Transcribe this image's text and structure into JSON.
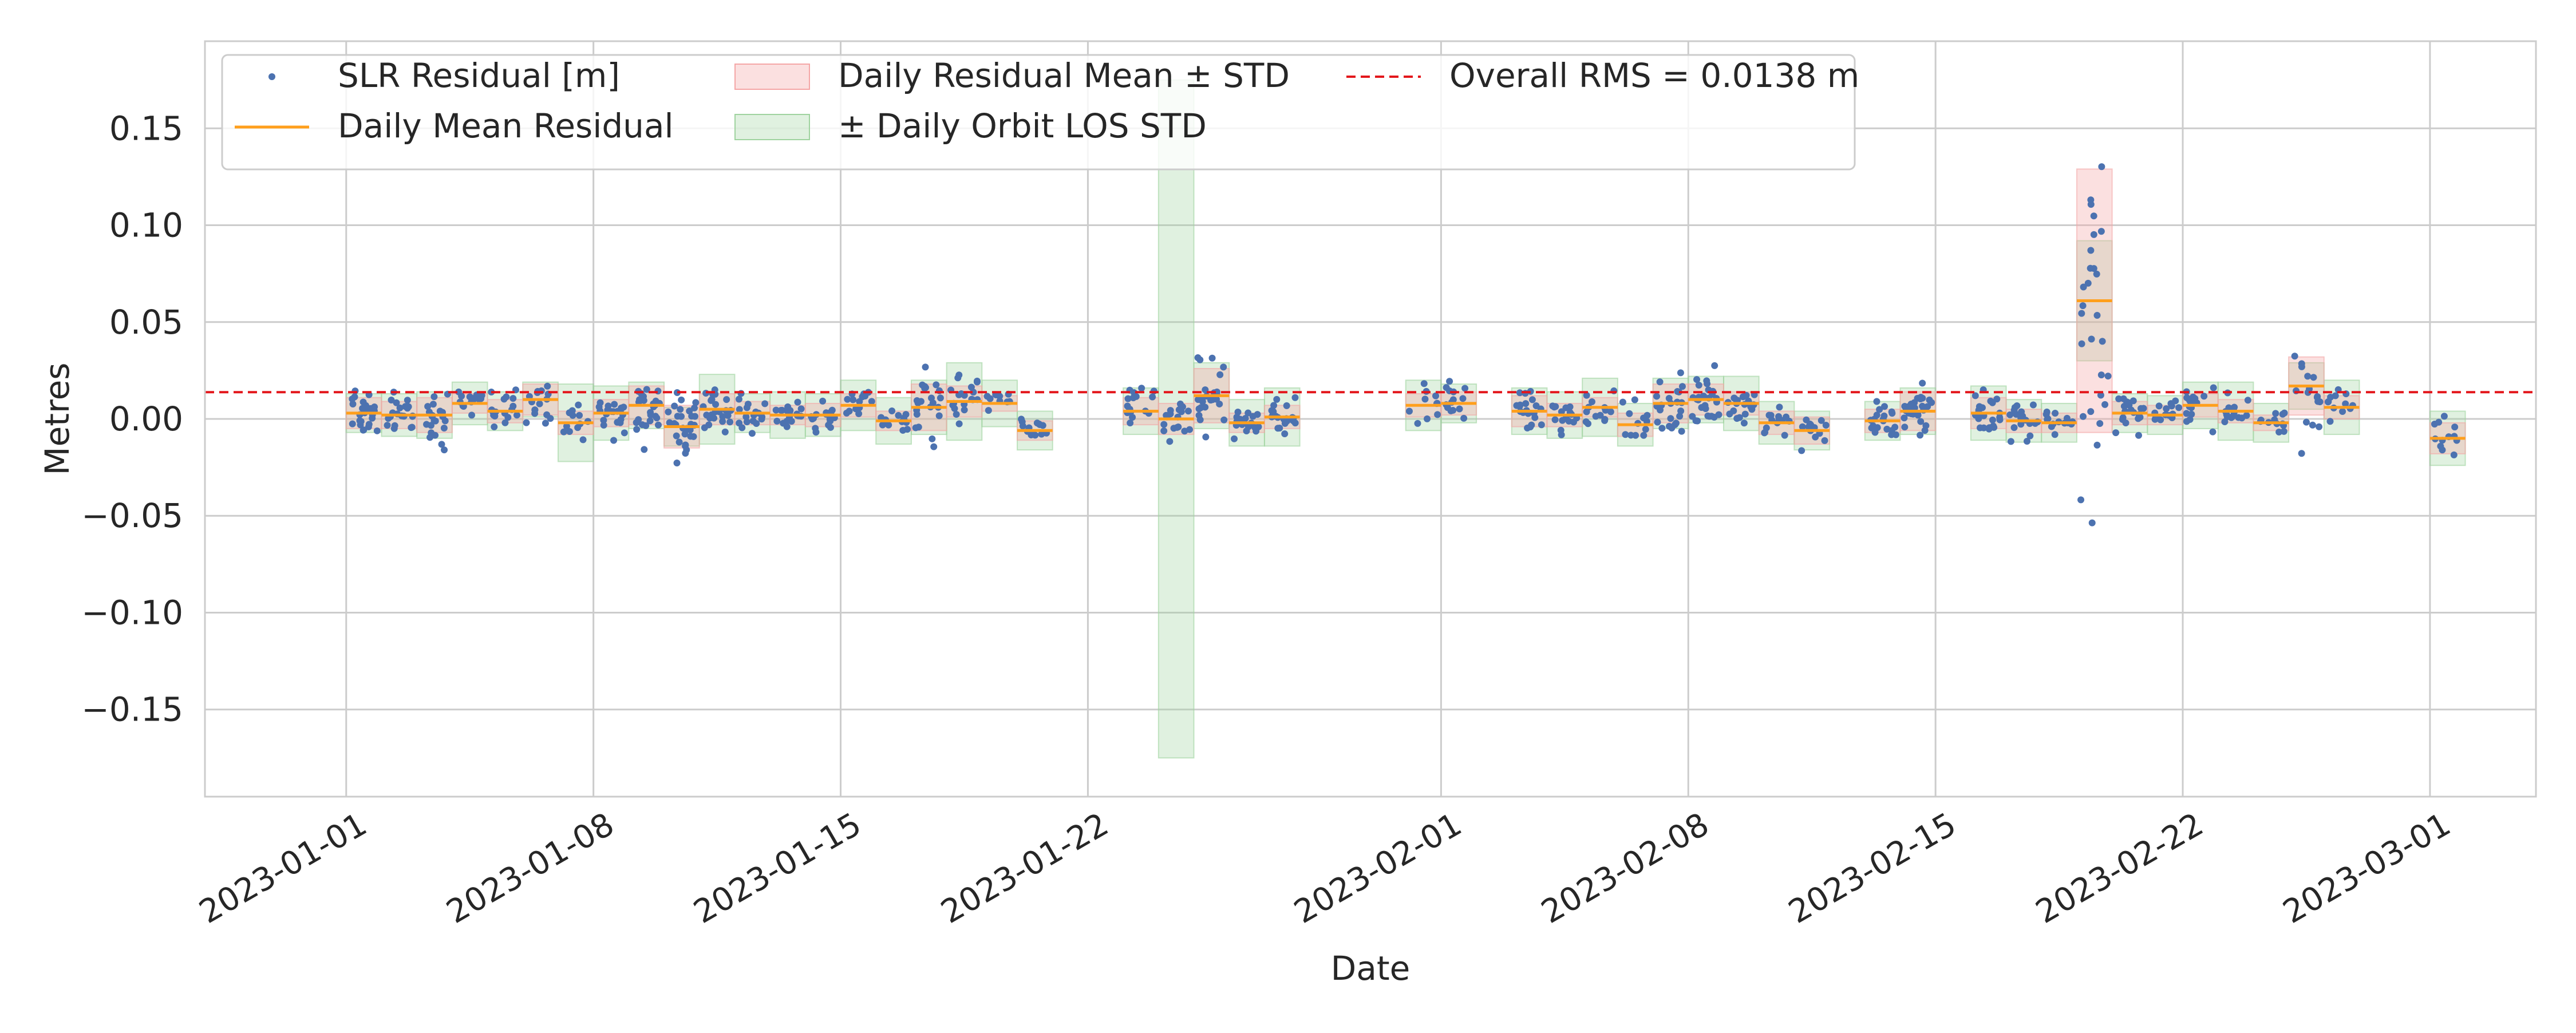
{
  "chart_data": {
    "type": "scatter",
    "xlabel": "Date",
    "ylabel": "Metres",
    "xlim": [
      "2022-12-28",
      "2023-03-04"
    ],
    "ylim": [
      -0.195,
      0.195
    ],
    "grid": true,
    "legend_position": "top-left",
    "x_ticks": [
      "2023-01-01",
      "2023-01-08",
      "2023-01-15",
      "2023-01-22",
      "2023-02-01",
      "2023-02-08",
      "2023-02-15",
      "2023-02-22",
      "2023-03-01"
    ],
    "y_ticks": [
      {
        "value": 0.15,
        "label": "0.15"
      },
      {
        "value": 0.1,
        "label": "0.10"
      },
      {
        "value": 0.05,
        "label": "0.05"
      },
      {
        "value": 0.0,
        "label": "0.00"
      },
      {
        "value": -0.05,
        "label": "−0.05"
      },
      {
        "value": -0.1,
        "label": "−0.10"
      },
      {
        "value": -0.15,
        "label": "−0.15"
      }
    ],
    "colors": {
      "scatter": "#4c72b0",
      "mean_line": "#ff9f1c",
      "residual_band": "#f4a6a6",
      "orbit_band": "#9fd39f",
      "rms_line": "#e3161b",
      "grid": "#cccccc",
      "axes_border": "#cccccc"
    },
    "legend": [
      {
        "key": "scatter",
        "label": "SLR Residual [m]"
      },
      {
        "key": "mean",
        "label": "Daily Mean Residual"
      },
      {
        "key": "resband",
        "label": "Daily Residual Mean ± STD"
      },
      {
        "key": "orbitband",
        "label": "± Daily Orbit LOS STD"
      },
      {
        "key": "rms",
        "label": "Overall RMS = 0.0138 m"
      }
    ],
    "overall_rms": 0.0138,
    "daily": [
      {
        "date": "2023-01-01",
        "mean": 0.003,
        "std": 0.008,
        "orbit_std": 0.01,
        "n": 28
      },
      {
        "date": "2023-01-02",
        "mean": 0.002,
        "std": 0.007,
        "orbit_std": 0.011,
        "n": 24
      },
      {
        "date": "2023-01-03",
        "mean": 0.002,
        "std": 0.009,
        "orbit_std": 0.012,
        "n": 22
      },
      {
        "date": "2023-01-04",
        "mean": 0.008,
        "std": 0.005,
        "orbit_std": 0.011,
        "n": 14
      },
      {
        "date": "2023-01-05",
        "mean": 0.004,
        "std": 0.006,
        "orbit_std": 0.01,
        "n": 18
      },
      {
        "date": "2023-01-06",
        "mean": 0.01,
        "std": 0.008,
        "orbit_std": 0.009,
        "n": 16
      },
      {
        "date": "2023-01-07",
        "mean": -0.002,
        "std": 0.006,
        "orbit_std": 0.02,
        "n": 12
      },
      {
        "date": "2023-01-08",
        "mean": 0.003,
        "std": 0.007,
        "orbit_std": 0.014,
        "n": 22
      },
      {
        "date": "2023-01-09",
        "mean": 0.007,
        "std": 0.01,
        "orbit_std": 0.012,
        "n": 26
      },
      {
        "date": "2023-01-10",
        "mean": -0.004,
        "std": 0.011,
        "orbit_std": 0.01,
        "n": 30
      },
      {
        "date": "2023-01-11",
        "mean": 0.005,
        "std": 0.008,
        "orbit_std": 0.018,
        "n": 24
      },
      {
        "date": "2023-01-12",
        "mean": 0.003,
        "std": 0.006,
        "orbit_std": 0.01,
        "n": 18
      },
      {
        "date": "2023-01-13",
        "mean": 0.002,
        "std": 0.005,
        "orbit_std": 0.012,
        "n": 20
      },
      {
        "date": "2023-01-14",
        "mean": 0.002,
        "std": 0.006,
        "orbit_std": 0.011,
        "n": 16
      },
      {
        "date": "2023-01-15",
        "mean": 0.007,
        "std": 0.006,
        "orbit_std": 0.013,
        "n": 14
      },
      {
        "date": "2023-01-16",
        "mean": -0.001,
        "std": 0.005,
        "orbit_std": 0.012,
        "n": 12
      },
      {
        "date": "2023-01-17",
        "mean": 0.006,
        "std": 0.012,
        "orbit_std": 0.014,
        "n": 22
      },
      {
        "date": "2023-01-18",
        "mean": 0.009,
        "std": 0.008,
        "orbit_std": 0.02,
        "n": 20
      },
      {
        "date": "2023-01-19",
        "mean": 0.008,
        "std": 0.004,
        "orbit_std": 0.012,
        "n": 10
      },
      {
        "date": "2023-01-20",
        "mean": -0.006,
        "std": 0.005,
        "orbit_std": 0.01,
        "n": 14
      },
      {
        "date": "2023-01-23",
        "mean": 0.004,
        "std": 0.007,
        "orbit_std": 0.012,
        "n": 16
      },
      {
        "date": "2023-01-24",
        "mean": 0.0,
        "std": 0.008,
        "orbit_std": 0.175,
        "n": 18
      },
      {
        "date": "2023-01-25",
        "mean": 0.012,
        "std": 0.014,
        "orbit_std": 0.017,
        "n": 26
      },
      {
        "date": "2023-01-26",
        "mean": -0.002,
        "std": 0.005,
        "orbit_std": 0.012,
        "n": 20
      },
      {
        "date": "2023-01-27",
        "mean": 0.001,
        "std": 0.006,
        "orbit_std": 0.015,
        "n": 24
      },
      {
        "date": "2023-01-31",
        "mean": 0.007,
        "std": 0.006,
        "orbit_std": 0.013,
        "n": 10
      },
      {
        "date": "2023-02-01",
        "mean": 0.008,
        "std": 0.006,
        "orbit_std": 0.01,
        "n": 14
      },
      {
        "date": "2023-02-03",
        "mean": 0.004,
        "std": 0.008,
        "orbit_std": 0.012,
        "n": 20
      },
      {
        "date": "2023-02-04",
        "mean": 0.002,
        "std": 0.006,
        "orbit_std": 0.012,
        "n": 16
      },
      {
        "date": "2023-02-05",
        "mean": 0.006,
        "std": 0.005,
        "orbit_std": 0.015,
        "n": 14
      },
      {
        "date": "2023-02-06",
        "mean": -0.003,
        "std": 0.006,
        "orbit_std": 0.011,
        "n": 12
      },
      {
        "date": "2023-02-07",
        "mean": 0.008,
        "std": 0.01,
        "orbit_std": 0.013,
        "n": 24
      },
      {
        "date": "2023-02-08",
        "mean": 0.01,
        "std": 0.008,
        "orbit_std": 0.012,
        "n": 28
      },
      {
        "date": "2023-02-09",
        "mean": 0.008,
        "std": 0.006,
        "orbit_std": 0.014,
        "n": 22
      },
      {
        "date": "2023-02-10",
        "mean": -0.002,
        "std": 0.006,
        "orbit_std": 0.011,
        "n": 16
      },
      {
        "date": "2023-02-11",
        "mean": -0.006,
        "std": 0.007,
        "orbit_std": 0.01,
        "n": 14
      },
      {
        "date": "2023-02-13",
        "mean": -0.001,
        "std": 0.006,
        "orbit_std": 0.01,
        "n": 20
      },
      {
        "date": "2023-02-14",
        "mean": 0.004,
        "std": 0.01,
        "orbit_std": 0.012,
        "n": 30
      },
      {
        "date": "2023-02-16",
        "mean": 0.003,
        "std": 0.008,
        "orbit_std": 0.014,
        "n": 22
      },
      {
        "date": "2023-02-17",
        "mean": -0.001,
        "std": 0.006,
        "orbit_std": 0.011,
        "n": 18
      },
      {
        "date": "2023-02-18",
        "mean": -0.002,
        "std": 0.005,
        "orbit_std": 0.01,
        "n": 14
      },
      {
        "date": "2023-02-19",
        "mean": 0.061,
        "std": 0.068,
        "orbit_std": 0.031,
        "n": 28
      },
      {
        "date": "2023-02-20",
        "mean": 0.003,
        "std": 0.006,
        "orbit_std": 0.01,
        "n": 20
      },
      {
        "date": "2023-02-21",
        "mean": 0.002,
        "std": 0.005,
        "orbit_std": 0.01,
        "n": 16
      },
      {
        "date": "2023-02-22",
        "mean": 0.007,
        "std": 0.006,
        "orbit_std": 0.012,
        "n": 18
      },
      {
        "date": "2023-02-23",
        "mean": 0.004,
        "std": 0.006,
        "orbit_std": 0.015,
        "n": 16
      },
      {
        "date": "2023-02-24",
        "mean": -0.002,
        "std": 0.004,
        "orbit_std": 0.01,
        "n": 12
      },
      {
        "date": "2023-02-25",
        "mean": 0.017,
        "std": 0.015,
        "orbit_std": 0.012,
        "n": 16
      },
      {
        "date": "2023-02-26",
        "mean": 0.006,
        "std": 0.006,
        "orbit_std": 0.014,
        "n": 12
      },
      {
        "date": "2023-03-01",
        "mean": -0.01,
        "std": 0.008,
        "orbit_std": 0.014,
        "n": 12
      }
    ]
  }
}
